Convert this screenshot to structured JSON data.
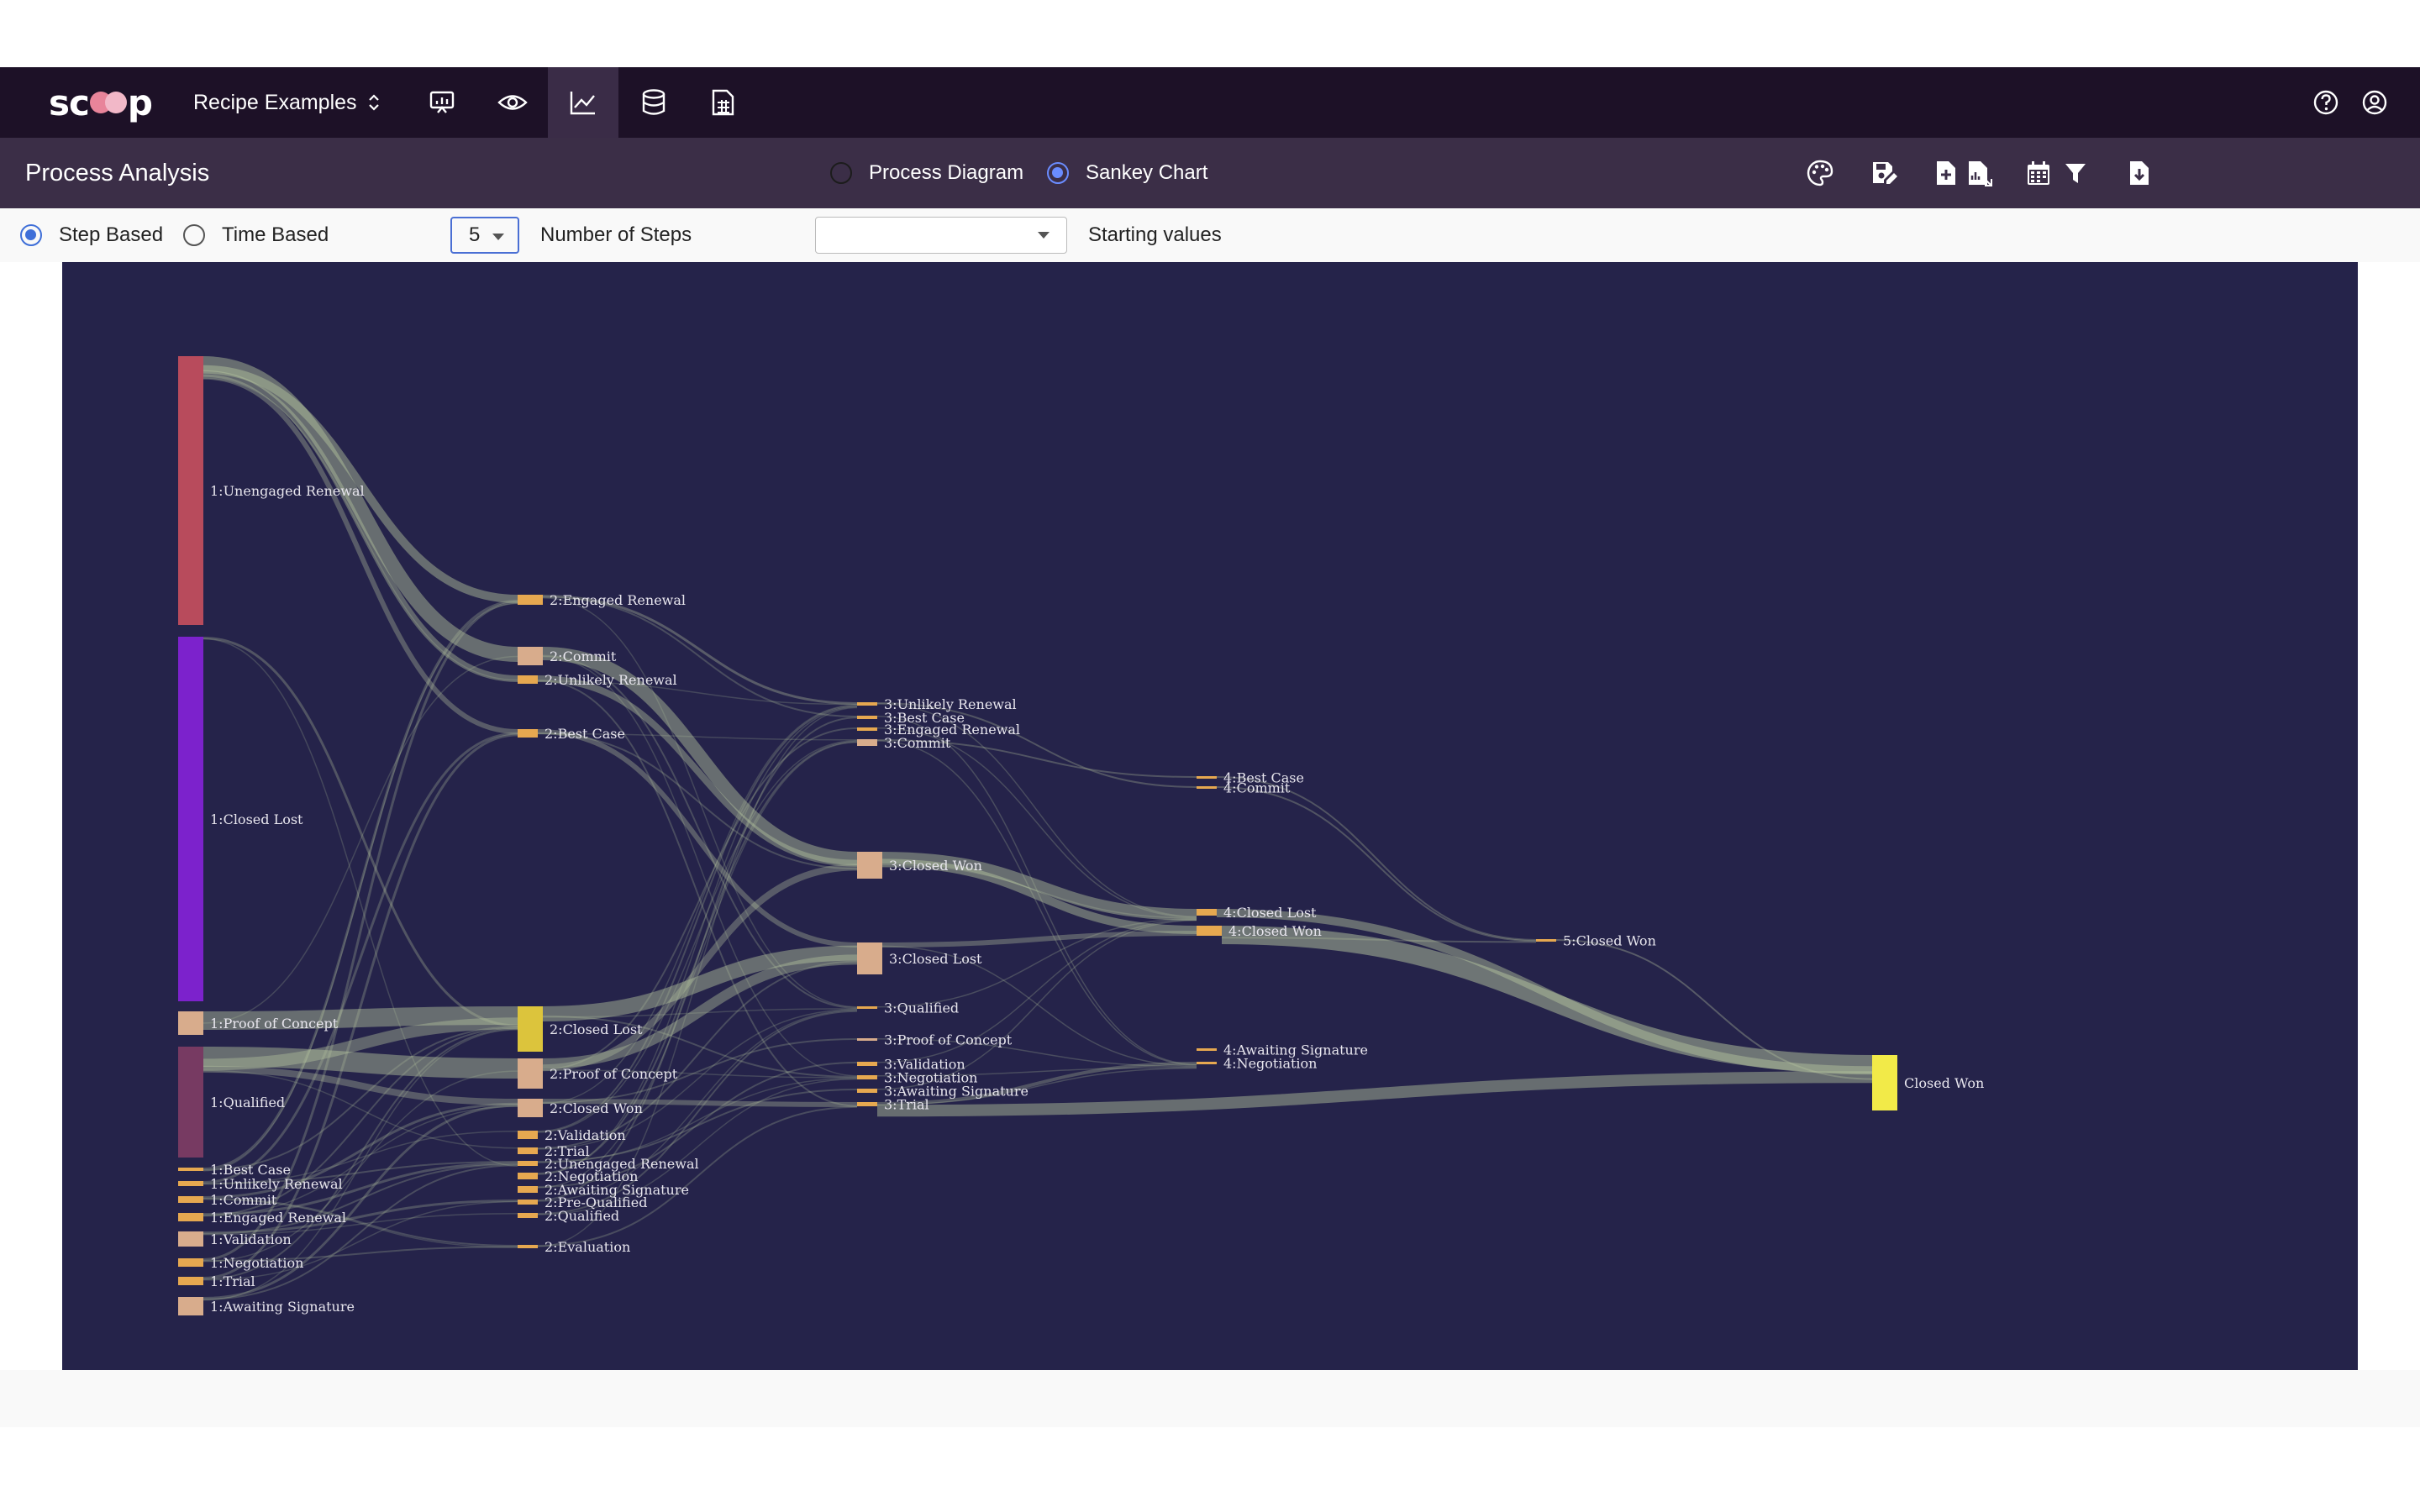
{
  "app": {
    "logo_text": "scoop",
    "workspace": "Recipe Examples",
    "nav_icons": [
      "presentation-icon",
      "eye-icon",
      "line-chart-icon",
      "database-icon",
      "report-grid-icon"
    ],
    "right_icons": [
      "help-icon",
      "account-icon"
    ]
  },
  "page": {
    "title": "Process Analysis",
    "view_modes": [
      {
        "label": "Process Diagram",
        "selected": false
      },
      {
        "label": "Sankey Chart",
        "selected": true
      }
    ],
    "tool_icons": [
      "palette-icon",
      "save-edit-icon",
      "add-file-icon",
      "file-chart-icon",
      "calendar-icon",
      "filter-icon",
      "download-icon"
    ]
  },
  "options": {
    "analysis_types": [
      {
        "label": "Step Based",
        "selected": true
      },
      {
        "label": "Time Based",
        "selected": false
      }
    ],
    "steps_value": "5",
    "steps_label": "Number of Steps",
    "starting_values_value": "",
    "starting_values_label": "Starting values"
  },
  "colors": {
    "chart_bg": "#25234a",
    "link": "#b8c7a0",
    "node_small": "#e6a850",
    "node_mid": "#d8ac8c",
    "node_gold": "#dcc43c",
    "closed_won_final": "#f2ea48",
    "unengaged": "#b84b5c",
    "closed_lost": "#7c22cc",
    "qualified": "#773a62"
  },
  "chart_data": {
    "type": "sankey",
    "columns": [
      {
        "step": 1,
        "nodes": [
          {
            "label": "1:Unengaged Renewal",
            "value": 530
          },
          {
            "label": "1:Closed Lost",
            "value": 720
          },
          {
            "label": "1:Proof of Concept",
            "value": 45
          },
          {
            "label": "1:Qualified",
            "value": 210
          },
          {
            "label": "1:Best Case",
            "value": 8
          },
          {
            "label": "1:Unlikely Renewal",
            "value": 10
          },
          {
            "label": "1:Commit",
            "value": 10
          },
          {
            "label": "1:Engaged Renewal",
            "value": 12
          },
          {
            "label": "1:Validation",
            "value": 30
          },
          {
            "label": "1:Negotiation",
            "value": 14
          },
          {
            "label": "1:Trial",
            "value": 12
          },
          {
            "label": "1:Awaiting Signature",
            "value": 36
          }
        ]
      },
      {
        "step": 2,
        "nodes": [
          {
            "label": "2:Engaged Renewal",
            "value": 16
          },
          {
            "label": "2:Commit",
            "value": 36
          },
          {
            "label": "2:Unlikely Renewal",
            "value": 14
          },
          {
            "label": "2:Best Case",
            "value": 14
          },
          {
            "label": "2:Closed Lost",
            "value": 84
          },
          {
            "label": "2:Proof of Concept",
            "value": 60
          },
          {
            "label": "2:Closed Won",
            "value": 36
          },
          {
            "label": "2:Validation",
            "value": 12
          },
          {
            "label": "2:Trial",
            "value": 8
          },
          {
            "label": "2:Unengaged Renewal",
            "value": 6
          },
          {
            "label": "2:Negotiation",
            "value": 10
          },
          {
            "label": "2:Awaiting Signature",
            "value": 8
          },
          {
            "label": "2:Pre-Qualified",
            "value": 6
          },
          {
            "label": "2:Qualified",
            "value": 6
          },
          {
            "label": "2:Evaluation",
            "value": 4
          }
        ]
      },
      {
        "step": 3,
        "nodes": [
          {
            "label": "3:Unlikely Renewal",
            "value": 4
          },
          {
            "label": "3:Best Case",
            "value": 4
          },
          {
            "label": "3:Engaged Renewal",
            "value": 4
          },
          {
            "label": "3:Commit",
            "value": 8
          },
          {
            "label": "3:Closed Won",
            "value": 52
          },
          {
            "label": "3:Closed Lost",
            "value": 60
          },
          {
            "label": "3:Qualified",
            "value": 3
          },
          {
            "label": "3:Proof of Concept",
            "value": 3
          },
          {
            "label": "3:Validation",
            "value": 5
          },
          {
            "label": "3:Negotiation",
            "value": 5
          },
          {
            "label": "3:Awaiting Signature",
            "value": 5
          },
          {
            "label": "3:Trial",
            "value": 5
          }
        ]
      },
      {
        "step": 4,
        "nodes": [
          {
            "label": "4:Best Case",
            "value": 3
          },
          {
            "label": "4:Commit",
            "value": 3
          },
          {
            "label": "4:Closed Lost",
            "value": 8
          },
          {
            "label": "4:Closed Won",
            "value": 12
          },
          {
            "label": "4:Awaiting Signature",
            "value": 3
          },
          {
            "label": "4:Negotiation",
            "value": 3
          }
        ]
      },
      {
        "step": 5,
        "nodes": [
          {
            "label": "5:Closed Won",
            "value": 4
          }
        ]
      }
    ],
    "final_nodes": [
      {
        "label": "Closed Won",
        "value": 110
      }
    ]
  }
}
